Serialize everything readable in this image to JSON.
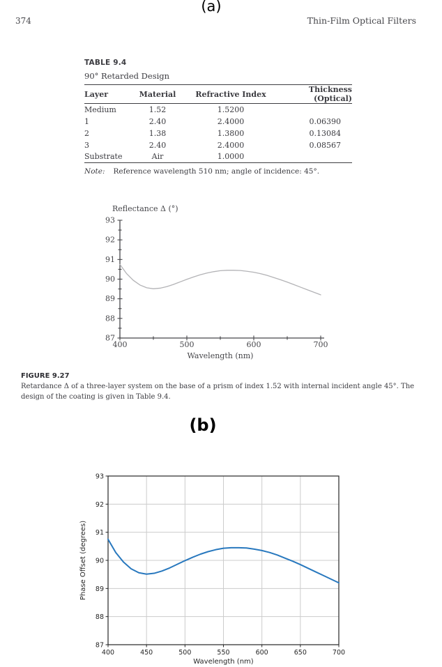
{
  "page": {
    "section_a_label": "(a)",
    "section_b_label": "(b)",
    "page_number": "374",
    "running_header": "Thin-Film Optical Filters"
  },
  "table": {
    "label": "TABLE 9.4",
    "subtitle": "90° Retarded Design",
    "columns": [
      "Layer",
      "Material",
      "Refractive Index",
      "Thickness (Optical)"
    ],
    "rows": [
      [
        "Medium",
        "1.52",
        "1.5200",
        ""
      ],
      [
        "1",
        "2.40",
        "2.4000",
        "0.06390"
      ],
      [
        "2",
        "1.38",
        "1.3800",
        "0.13084"
      ],
      [
        "3",
        "2.40",
        "2.4000",
        "0.08567"
      ],
      [
        "Substrate",
        "Air",
        "1.0000",
        ""
      ]
    ],
    "note_label": "Note:",
    "note_text": "Reference wavelength 510 nm; angle of incidence: 45°."
  },
  "figure_caption": {
    "label": "FIGURE 9.27",
    "text": "Retardance Δ of a three-layer system on the base of a prism of index 1.52 with internal incident angle 45°. The design of the coating is given in Table 9.4."
  },
  "chart_data": [
    {
      "type": "line",
      "title": "Reflectance Δ (°)",
      "xlabel": "Wavelength (nm)",
      "ylabel": "",
      "xlim": [
        400,
        700
      ],
      "ylim": [
        87,
        93
      ],
      "x_label_ticks": [
        400,
        500,
        600,
        700
      ],
      "x_minor_step": 50,
      "y_label_step": 1,
      "y_minor_step": 0.5,
      "grid": false,
      "legend": "none",
      "line_color": "#b3b3b6",
      "axis_color": "#46464a",
      "x": [
        400,
        410,
        420,
        430,
        440,
        450,
        460,
        470,
        480,
        490,
        500,
        510,
        520,
        530,
        540,
        550,
        560,
        570,
        580,
        590,
        600,
        610,
        620,
        630,
        640,
        650,
        660,
        670,
        680,
        690,
        700
      ],
      "y": [
        90.75,
        90.28,
        89.94,
        89.7,
        89.56,
        89.51,
        89.54,
        89.62,
        89.73,
        89.86,
        89.99,
        90.11,
        90.22,
        90.31,
        90.38,
        90.43,
        90.45,
        90.45,
        90.44,
        90.4,
        90.35,
        90.28,
        90.19,
        90.08,
        89.97,
        89.85,
        89.72,
        89.59,
        89.46,
        89.33,
        89.2
      ]
    },
    {
      "type": "line",
      "title": "",
      "xlabel": "Wavelength (nm)",
      "ylabel": "Phase Offset (degrees)",
      "xlim": [
        400,
        700
      ],
      "ylim": [
        87,
        93
      ],
      "x_ticks": [
        400,
        450,
        500,
        550,
        600,
        650,
        700
      ],
      "y_ticks": [
        87,
        88,
        89,
        90,
        91,
        92,
        93
      ],
      "grid": true,
      "grid_color": "#cccccc",
      "legend": "none",
      "line_color": "#2878be",
      "axis_color": "#262626",
      "x": [
        400,
        410,
        420,
        430,
        440,
        450,
        460,
        470,
        480,
        490,
        500,
        510,
        520,
        530,
        540,
        550,
        560,
        570,
        580,
        590,
        600,
        610,
        620,
        630,
        640,
        650,
        660,
        670,
        680,
        690,
        700
      ],
      "y": [
        90.75,
        90.28,
        89.94,
        89.7,
        89.56,
        89.51,
        89.54,
        89.62,
        89.73,
        89.86,
        89.99,
        90.11,
        90.22,
        90.31,
        90.38,
        90.43,
        90.45,
        90.45,
        90.44,
        90.4,
        90.35,
        90.28,
        90.19,
        90.08,
        89.97,
        89.85,
        89.72,
        89.59,
        89.46,
        89.33,
        89.2
      ]
    }
  ]
}
